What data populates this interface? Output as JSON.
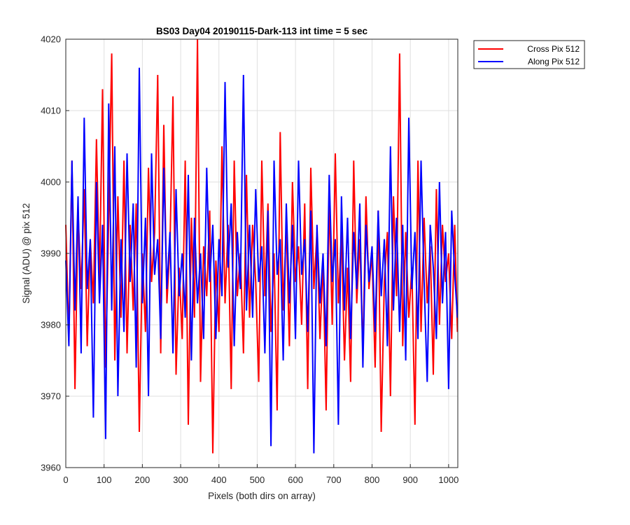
{
  "chart_data": {
    "type": "line",
    "title": "BS03 Day04 20190115-Dark-113 int time = 5 sec",
    "xlabel": "Pixels (both dirs on array)",
    "ylabel": "Signal (ADU) @ pix 512",
    "xlim": [
      0,
      1024
    ],
    "ylim": [
      3960,
      4020
    ],
    "xticks": [
      0,
      100,
      200,
      300,
      400,
      500,
      600,
      700,
      800,
      900,
      1000
    ],
    "yticks": [
      3960,
      3970,
      3980,
      3990,
      4000,
      4010,
      4020
    ],
    "grid": true,
    "legend_position": "outside-top-right",
    "series": [
      {
        "name": "Cross Pix 512",
        "color": "#ff0000",
        "x": [
          0,
          8,
          16,
          24,
          32,
          40,
          48,
          56,
          64,
          72,
          80,
          88,
          96,
          104,
          112,
          120,
          128,
          136,
          144,
          152,
          160,
          168,
          176,
          184,
          192,
          200,
          208,
          216,
          224,
          232,
          240,
          248,
          256,
          264,
          272,
          280,
          288,
          296,
          304,
          312,
          320,
          328,
          336,
          344,
          352,
          360,
          368,
          376,
          384,
          392,
          400,
          408,
          416,
          424,
          432,
          440,
          448,
          456,
          464,
          472,
          480,
          488,
          496,
          504,
          512,
          520,
          528,
          536,
          544,
          552,
          560,
          568,
          576,
          584,
          592,
          600,
          608,
          616,
          624,
          632,
          640,
          648,
          656,
          664,
          672,
          680,
          688,
          696,
          704,
          712,
          720,
          728,
          736,
          744,
          752,
          760,
          768,
          776,
          784,
          792,
          800,
          808,
          816,
          824,
          832,
          840,
          848,
          856,
          864,
          872,
          880,
          888,
          896,
          904,
          912,
          920,
          928,
          936,
          944,
          952,
          960,
          968,
          976,
          984,
          992,
          1000,
          1008,
          1016,
          1023
        ],
        "values": [
          3994,
          3978,
          4003,
          3971,
          3996,
          3985,
          3999,
          3977,
          3992,
          3983,
          4006,
          3986,
          4013,
          3974,
          3995,
          4018,
          3975,
          3998,
          3981,
          4003,
          3976,
          3994,
          3982,
          3997,
          3965,
          3990,
          3979,
          4002,
          3986,
          3993,
          4015,
          3976,
          4008,
          3983,
          3991,
          4012,
          3973,
          3988,
          3978,
          4003,
          3966,
          3995,
          3981,
          4020,
          3972,
          3991,
          3984,
          3996,
          3962,
          3989,
          3979,
          4005,
          3983,
          3994,
          3971,
          4003,
          3984,
          3990,
          3976,
          4001,
          3981,
          3994,
          3986,
          3972,
          4003,
          3984,
          3997,
          3979,
          3990,
          3968,
          4007,
          3982,
          3994,
          3977,
          4000,
          3986,
          3991,
          3980,
          3997,
          3971,
          4002,
          3985,
          3993,
          3978,
          3989,
          3968,
          3998,
          3980,
          4004,
          3983,
          3993,
          3975,
          3988,
          3972,
          4003,
          3983,
          3992,
          3976,
          3998,
          3985,
          3990,
          3974,
          3996,
          3965,
          3986,
          3993,
          3970,
          3998,
          3984,
          4018,
          3977,
          3993,
          3981,
          3988,
          3966,
          4003,
          3979,
          3995,
          3983,
          3991,
          3973,
          3999,
          3980,
          3994,
          3986,
          3990,
          3978,
          3994,
          3979
        ]
      },
      {
        "name": "Along Pix 512",
        "color": "#0000ff",
        "x": [
          0,
          8,
          16,
          24,
          32,
          40,
          48,
          56,
          64,
          72,
          80,
          88,
          96,
          104,
          112,
          120,
          128,
          136,
          144,
          152,
          160,
          168,
          176,
          184,
          192,
          200,
          208,
          216,
          224,
          232,
          240,
          248,
          256,
          264,
          272,
          280,
          288,
          296,
          304,
          312,
          320,
          328,
          336,
          344,
          352,
          360,
          368,
          376,
          384,
          392,
          400,
          408,
          416,
          424,
          432,
          440,
          448,
          456,
          464,
          472,
          480,
          488,
          496,
          504,
          512,
          520,
          528,
          536,
          544,
          552,
          560,
          568,
          576,
          584,
          592,
          600,
          608,
          616,
          624,
          632,
          640,
          648,
          656,
          664,
          672,
          680,
          688,
          696,
          704,
          712,
          720,
          728,
          736,
          744,
          752,
          760,
          768,
          776,
          784,
          792,
          800,
          808,
          816,
          824,
          832,
          840,
          848,
          856,
          864,
          872,
          880,
          888,
          896,
          904,
          912,
          920,
          928,
          936,
          944,
          952,
          960,
          968,
          976,
          984,
          992,
          1000,
          1008,
          1016,
          1023
        ],
        "values": [
          3989,
          3977,
          4003,
          3982,
          3998,
          3976,
          4009,
          3985,
          3992,
          3967,
          4000,
          3983,
          3994,
          3964,
          4011,
          3982,
          4005,
          3970,
          3992,
          3979,
          4004,
          3986,
          3997,
          3974,
          4016,
          3983,
          3995,
          3970,
          4004,
          3987,
          3992,
          3978,
          4002,
          3985,
          3993,
          3976,
          3999,
          3984,
          3990,
          3981,
          4001,
          3975,
          3995,
          3983,
          3990,
          3978,
          4002,
          3986,
          3994,
          3978,
          3992,
          3984,
          4014,
          3988,
          3997,
          3977,
          3993,
          3985,
          4015,
          3982,
          3994,
          3981,
          3999,
          3986,
          3991,
          3976,
          3996,
          3963,
          4003,
          3987,
          3992,
          3975,
          3997,
          3983,
          3994,
          3978,
          4003,
          3987,
          3992,
          3979,
          3996,
          3962,
          3994,
          3983,
          3990,
          3977,
          4001,
          3986,
          3992,
          3966,
          3998,
          3982,
          3995,
          3978,
          3993,
          3985,
          3997,
          3974,
          3994,
          3986,
          3991,
          3979,
          3996,
          3984,
          3992,
          3977,
          4005,
          3982,
          3995,
          3979,
          3994,
          3975,
          4009,
          3985,
          3993,
          3978,
          4003,
          3986,
          3972,
          3994,
          3988,
          3978,
          4000,
          3983,
          3993,
          3971,
          3996,
          3987,
          3981
        ]
      }
    ]
  }
}
